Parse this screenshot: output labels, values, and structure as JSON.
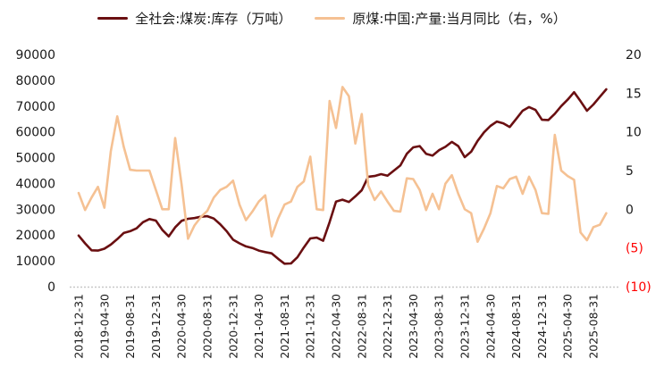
{
  "legend": {
    "items": [
      {
        "label": "全社会:煤炭:库存（万吨）",
        "color": "#6a0f11"
      },
      {
        "label": "原煤:中国:产量:当月同比（右，%）",
        "color": "#f5c193"
      }
    ]
  },
  "chart_data": {
    "type": "line",
    "title": "",
    "x_start_month": "2018-12",
    "x_end_month": "2025-10",
    "x_tick_labels": [
      "2018-12-31",
      "2019-04-30",
      "2019-08-31",
      "2019-12-31",
      "2020-04-30",
      "2020-08-31",
      "2020-12-31",
      "2021-04-30",
      "2021-08-31",
      "2021-12-31",
      "2022-04-30",
      "2022-08-31",
      "2022-12-31",
      "2023-04-30",
      "2023-08-31",
      "2023-12-31",
      "2024-04-30",
      "2024-08-31",
      "2024-12-31",
      "2025-04-30",
      "2025-08-31"
    ],
    "x_tick_every_n_months": 4,
    "left_axis": {
      "min": 0,
      "max": 90000,
      "step": 10000,
      "tick_color": "#1a1a1a"
    },
    "right_axis": {
      "min": -10,
      "max": 20,
      "step": 5,
      "tick_color": "#1a1a1a",
      "negative_format": "parentheses",
      "negative_color": "#ff0000"
    },
    "grid": false,
    "baseline_color": "#c8c8c8",
    "series": [
      {
        "name": "全社会:煤炭:库存（万吨）",
        "axis": "left",
        "color": "#6a0f11",
        "values": [
          19800,
          16800,
          14100,
          14000,
          14700,
          16300,
          18400,
          20800,
          21500,
          22600,
          25000,
          26200,
          25600,
          22000,
          19500,
          23000,
          25500,
          26300,
          26600,
          27100,
          27300,
          26400,
          24200,
          21500,
          18200,
          16800,
          15600,
          15000,
          14000,
          13400,
          12900,
          10800,
          8900,
          9000,
          11400,
          15200,
          18700,
          19000,
          17800,
          25000,
          33000,
          33700,
          32800,
          35000,
          37400,
          42600,
          42900,
          43600,
          43000,
          45000,
          47000,
          51500,
          54000,
          54500,
          51500,
          50800,
          52900,
          54200,
          56100,
          54500,
          50200,
          52300,
          56500,
          59800,
          62300,
          64000,
          63300,
          61900,
          65000,
          68200,
          69600,
          68500,
          64700,
          64600,
          67000,
          70000,
          72500,
          75400,
          71900,
          68200,
          70600,
          73600,
          76500
        ]
      },
      {
        "name": "原煤:中国:产量:当月同比（右，%）",
        "axis": "right",
        "color": "#f5c193",
        "values": [
          2.1,
          -0.1,
          1.5,
          2.9,
          0.2,
          7.5,
          12.0,
          8.1,
          5.1,
          5.0,
          5.0,
          5.0,
          2.5,
          0.0,
          0.0,
          9.2,
          3.2,
          -3.8,
          -2.1,
          -1.0,
          -0.2,
          1.5,
          2.5,
          2.9,
          3.7,
          0.6,
          -1.4,
          -0.3,
          1.0,
          1.8,
          -3.5,
          -1.2,
          0.6,
          1.0,
          2.9,
          3.6,
          6.8,
          0.0,
          -0.1,
          14.0,
          10.5,
          15.8,
          14.6,
          8.5,
          12.3,
          3.1,
          1.2,
          2.3,
          1.0,
          -0.2,
          -0.3,
          4.0,
          3.9,
          2.5,
          -0.1,
          2.0,
          0.0,
          3.3,
          4.4,
          2.0,
          0.0,
          -0.5,
          -4.2,
          -2.5,
          -0.5,
          3.0,
          2.7,
          3.9,
          4.2,
          2.0,
          4.2,
          2.5,
          -0.5,
          -0.6,
          9.6,
          5.0,
          4.3,
          3.8,
          -3.0,
          -4.0,
          -2.3,
          -2.0,
          -0.5
        ]
      }
    ]
  }
}
